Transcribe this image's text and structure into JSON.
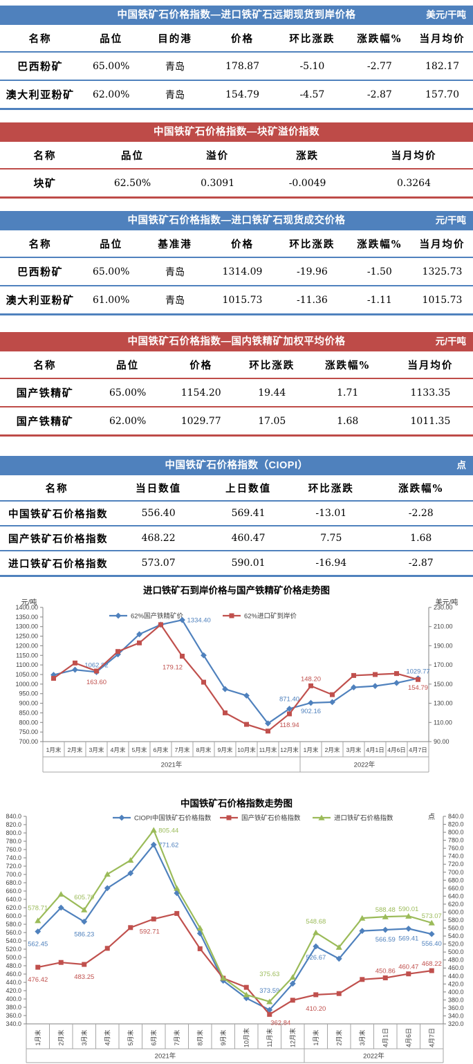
{
  "theme": {
    "blue": "#4F81BD",
    "red": "#BE4B48",
    "series_blue": "#4F81BD",
    "series_red": "#C0504D",
    "series_green": "#9BBB59"
  },
  "tables": [
    {
      "theme": "blue",
      "title": "中国铁矿石价格指数—进口铁矿石远期现货到岸价格",
      "unit": "美元/干吨",
      "columns": [
        "名称",
        "品位",
        "目的港",
        "价格",
        "环比涨跌",
        "涨跌幅%",
        "当月均价"
      ],
      "widths": [
        17,
        13,
        14,
        14.5,
        15,
        13.5,
        13
      ],
      "rows": [
        [
          "巴西粉矿",
          "65.00%",
          "青岛",
          "178.87",
          "-5.10",
          "-2.77",
          "182.17"
        ],
        [
          "澳大利亚粉矿",
          "62.00%",
          "青岛",
          "154.79",
          "-4.57",
          "-2.87",
          "157.70"
        ]
      ]
    },
    {
      "theme": "red",
      "title": "中国铁矿石价格指数—块矿溢价指数",
      "unit": "",
      "columns": [
        "名称",
        "品位",
        "溢价",
        "涨跌",
        "当月均价"
      ],
      "widths": [
        19,
        18,
        18,
        20,
        25
      ],
      "rows": [
        [
          "块矿",
          "62.50%",
          "0.3091",
          "-0.0049",
          "0.3264"
        ]
      ]
    },
    {
      "theme": "blue",
      "title": "中国铁矿石价格指数—进口铁矿石现货成交价格",
      "unit": "元/干吨",
      "columns": [
        "名称",
        "品位",
        "基准港",
        "价格",
        "环比涨跌",
        "涨跌幅%",
        "当月均价"
      ],
      "widths": [
        17,
        13,
        14,
        14.5,
        15,
        13.5,
        13
      ],
      "rows": [
        [
          "巴西粉矿",
          "65.00%",
          "青岛",
          "1314.09",
          "-19.96",
          "-1.50",
          "1325.73"
        ],
        [
          "澳大利亚粉矿",
          "61.00%",
          "青岛",
          "1015.73",
          "-11.36",
          "-1.11",
          "1015.73"
        ]
      ]
    },
    {
      "theme": "red",
      "title": "中国铁矿石价格指数—国内铁精矿加权平均价格",
      "unit": "元/干吨",
      "columns": [
        "名称",
        "品位",
        "价格",
        "环比涨跌",
        "涨跌幅%",
        "当月均价"
      ],
      "widths": [
        19,
        16,
        15,
        15,
        17,
        18
      ],
      "rows": [
        [
          "国产铁精矿",
          "65.00%",
          "1154.20",
          "19.44",
          "1.71",
          "1133.35"
        ],
        [
          "国产铁精矿",
          "62.00%",
          "1029.77",
          "17.05",
          "1.68",
          "1011.35"
        ]
      ]
    },
    {
      "theme": "blue",
      "title": "中国铁矿石价格指数（CIOPI）",
      "unit": "点",
      "columns": [
        "名称",
        "当日数值",
        "上日数值",
        "环比涨跌",
        "涨跌幅%"
      ],
      "widths": [
        24,
        19,
        19,
        16,
        22
      ],
      "rows": [
        [
          "中国铁矿石价格指数",
          "556.40",
          "569.41",
          "-13.01",
          "-2.28"
        ],
        [
          "国产铁矿石价格指数",
          "468.22",
          "460.47",
          "7.75",
          "1.68"
        ],
        [
          "进口铁矿石价格指数",
          "573.07",
          "590.01",
          "-16.94",
          "-2.87"
        ]
      ]
    }
  ],
  "chart_data": [
    {
      "type": "line",
      "title": "进口铁矿石到岸价格与国产铁精矿价格走势图",
      "grid": false,
      "legend_position": "top",
      "left_axis": {
        "label": "元/吨",
        "min": 700,
        "max": 1400,
        "step": 50,
        "decimals": 2
      },
      "right_axis": {
        "label": "美元/吨",
        "min": 90,
        "max": 230,
        "step": 20,
        "decimals": 2
      },
      "categories": [
        "1月末",
        "2月末",
        "3月末",
        "4月末",
        "5月末",
        "6月末",
        "7月末",
        "8月末",
        "9月末",
        "10月末",
        "11月末",
        "12月末",
        "1月末",
        "2月末",
        "3月末",
        "4月1日",
        "4月6日",
        "4月7日"
      ],
      "groups": [
        {
          "label": "2021年",
          "span": 12
        },
        {
          "label": "2022年",
          "span": 6
        }
      ],
      "series": [
        {
          "name": "62%国产铁精矿价",
          "color": "#4F81BD",
          "marker": "diamond",
          "axis": "left",
          "values": [
            1048,
            1075,
            1062.82,
            1155,
            1260,
            1310,
            1334.4,
            1150,
            974,
            940,
            795,
            871.4,
            902.16,
            906,
            983,
            990,
            1006,
            1029.77
          ],
          "point_labels": [
            {
              "i": 2,
              "text": "1062.82",
              "pos": "above"
            },
            {
              "i": 6,
              "text": "1334.40",
              "pos": "right"
            },
            {
              "i": 11,
              "text": "871.40",
              "pos": "above",
              "dy": -4
            },
            {
              "i": 12,
              "text": "902.16",
              "pos": "below"
            },
            {
              "i": 17,
              "text": "1029.77",
              "pos": "above"
            }
          ]
        },
        {
          "name": "62%进口矿到岸价",
          "color": "#C0504D",
          "marker": "square",
          "axis": "right",
          "values": [
            156,
            172,
            163.6,
            184,
            193,
            212,
            179.12,
            152,
            120,
            108,
            101,
            118.94,
            148.2,
            139,
            159,
            160,
            161,
            154.79
          ],
          "point_labels": [
            {
              "i": 2,
              "text": "163.60",
              "pos": "below",
              "dy": 4
            },
            {
              "i": 6,
              "text": "179.12",
              "pos": "below",
              "dx": -14,
              "dy": 4
            },
            {
              "i": 11,
              "text": "118.94",
              "pos": "below",
              "dy": 4
            },
            {
              "i": 12,
              "text": "148.20",
              "pos": "above"
            },
            {
              "i": 17,
              "text": "154.79",
              "pos": "below"
            }
          ]
        }
      ]
    },
    {
      "type": "line",
      "title": "中国铁矿石价格指数走势图",
      "grid": false,
      "legend_position": "top",
      "left_axis": {
        "label": "",
        "min": 340,
        "max": 840,
        "step": 20,
        "decimals": 1
      },
      "right_axis": {
        "label": "点",
        "min": 320,
        "max": 840,
        "step": 20,
        "decimals": 1
      },
      "categories": [
        "1月末",
        "2月末",
        "3月末",
        "4月末",
        "5月末",
        "6月末",
        "7月末",
        "8月末",
        "9月末",
        "10月末",
        "11月末",
        "12月末",
        "1月末",
        "2月末",
        "3月末",
        "4月1日",
        "4月6日",
        "4月7日"
      ],
      "groups": [
        {
          "label": "2021年",
          "span": 12
        },
        {
          "label": "2022年",
          "span": 6
        }
      ],
      "series": [
        {
          "name": "CIOPI中国铁矿石价格指数",
          "color": "#4F81BD",
          "marker": "diamond",
          "axis": "left",
          "values": [
            562.45,
            620,
            586.23,
            667,
            703,
            771.62,
            655,
            558,
            444,
            402,
            373.59,
            437,
            526.67,
            497,
            564,
            566.59,
            569.41,
            556.4
          ],
          "point_labels": [
            {
              "i": 0,
              "text": "562.45",
              "pos": "below",
              "dy": 6
            },
            {
              "i": 2,
              "text": "586.23",
              "pos": "below",
              "dy": 6
            },
            {
              "i": 5,
              "text": "771.62",
              "pos": "right"
            },
            {
              "i": 10,
              "text": "373.59",
              "pos": "above",
              "dy": -18
            },
            {
              "i": 12,
              "text": "526.67",
              "pos": "below",
              "dy": 4
            },
            {
              "i": 15,
              "text": "566.59",
              "pos": "below",
              "dy": 2
            },
            {
              "i": 16,
              "text": "569.41",
              "pos": "below",
              "dy": 2
            },
            {
              "i": 17,
              "text": "556.40",
              "pos": "below",
              "dy": 2
            }
          ]
        },
        {
          "name": "国产铁矿石价格指数",
          "color": "#C0504D",
          "marker": "square",
          "axis": "left",
          "values": [
            476.42,
            488,
            483.25,
            522,
            572,
            592.71,
            606,
            521,
            450,
            428,
            362.84,
            397,
            410.2,
            413,
            447,
            450.86,
            460.47,
            468.22
          ],
          "point_labels": [
            {
              "i": 0,
              "text": "476.42",
              "pos": "below",
              "dy": 6
            },
            {
              "i": 2,
              "text": "483.25",
              "pos": "below",
              "dy": 6
            },
            {
              "i": 5,
              "text": "592.71",
              "pos": "below",
              "dx": -6,
              "dy": 6
            },
            {
              "i": 10,
              "text": "362.84",
              "pos": "below",
              "dx": 16
            },
            {
              "i": 12,
              "text": "410.20",
              "pos": "below",
              "dy": 8
            },
            {
              "i": 15,
              "text": "450.86",
              "pos": "above"
            },
            {
              "i": 16,
              "text": "460.47",
              "pos": "above"
            },
            {
              "i": 17,
              "text": "468.22",
              "pos": "above"
            }
          ]
        },
        {
          "name": "进口铁矿石价格指数",
          "color": "#9BBB59",
          "marker": "triangle",
          "axis": "right",
          "values": [
            578.71,
            645,
            605.7,
            695,
            730,
            805.44,
            660,
            560,
            435,
            393,
            375.63,
            437,
            548.68,
            512,
            585,
            588.48,
            590.01,
            573.07
          ],
          "point_labels": [
            {
              "i": 0,
              "text": "578.71",
              "pos": "above",
              "dy": -8
            },
            {
              "i": 2,
              "text": "605.70",
              "pos": "above",
              "dy": -8
            },
            {
              "i": 5,
              "text": "805.44",
              "pos": "right"
            },
            {
              "i": 10,
              "text": "375.63",
              "pos": "above",
              "dy": -30
            },
            {
              "i": 12,
              "text": "548.68",
              "pos": "above",
              "dy": -6
            },
            {
              "i": 15,
              "text": "588.48",
              "pos": "above"
            },
            {
              "i": 16,
              "text": "590.01",
              "pos": "above"
            },
            {
              "i": 17,
              "text": "573.07",
              "pos": "above"
            }
          ]
        }
      ]
    }
  ]
}
